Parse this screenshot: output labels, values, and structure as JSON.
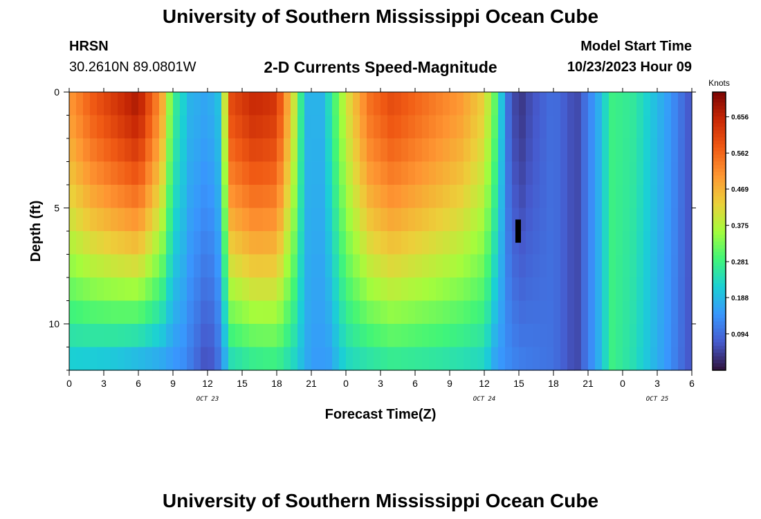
{
  "header": {
    "title": "University of Southern Mississippi Ocean Cube",
    "station": "HRSN",
    "coords": "30.2610N  89.0801W",
    "subtitle": "2-D Currents Speed-Magnitude",
    "model_label": "Model Start Time",
    "model_time": "10/23/2023 Hour 09"
  },
  "footer": {
    "title": "University of Southern Mississippi Ocean Cube"
  },
  "chart_data": {
    "type": "heatmap",
    "title": "2-D Currents Speed-Magnitude",
    "xlabel": "Forecast Time(Z)",
    "ylabel": "Depth (ft)",
    "x_hours_range": [
      0,
      54
    ],
    "y_range": [
      0,
      12
    ],
    "y_ticks": [
      0,
      5,
      10
    ],
    "x_ticks": [
      {
        "h": 0,
        "label": "0"
      },
      {
        "h": 3,
        "label": "3"
      },
      {
        "h": 6,
        "label": "6"
      },
      {
        "h": 9,
        "label": "9"
      },
      {
        "h": 12,
        "label": "12"
      },
      {
        "h": 15,
        "label": "15"
      },
      {
        "h": 18,
        "label": "18"
      },
      {
        "h": 21,
        "label": "21"
      },
      {
        "h": 24,
        "label": "0"
      },
      {
        "h": 27,
        "label": "3"
      },
      {
        "h": 30,
        "label": "6"
      },
      {
        "h": 33,
        "label": "9"
      },
      {
        "h": 36,
        "label": "12"
      },
      {
        "h": 39,
        "label": "15"
      },
      {
        "h": 42,
        "label": "18"
      },
      {
        "h": 45,
        "label": "21"
      },
      {
        "h": 48,
        "label": "0"
      },
      {
        "h": 51,
        "label": "3"
      },
      {
        "h": 54,
        "label": "6"
      }
    ],
    "date_labels": [
      {
        "h": 12,
        "label": "OCT 23"
      },
      {
        "h": 36,
        "label": "OCT 24"
      },
      {
        "h": 51,
        "label": "OCT 25"
      }
    ],
    "colorbar": {
      "unit": "Knots",
      "min": 0,
      "max": 0.72,
      "ticks": [
        0.656,
        0.562,
        0.469,
        0.375,
        0.281,
        0.188,
        0.094
      ]
    },
    "speed_by_hour_at_surface": [
      {
        "h": 0,
        "v": 0.5
      },
      {
        "h": 2,
        "v": 0.58
      },
      {
        "h": 4,
        "v": 0.63
      },
      {
        "h": 6,
        "v": 0.68
      },
      {
        "h": 8,
        "v": 0.5
      },
      {
        "h": 9,
        "v": 0.28
      },
      {
        "h": 10.5,
        "v": 0.18
      },
      {
        "h": 12,
        "v": 0.16
      },
      {
        "h": 13,
        "v": 0.2
      },
      {
        "h": 14,
        "v": 0.6
      },
      {
        "h": 16,
        "v": 0.65
      },
      {
        "h": 18,
        "v": 0.63
      },
      {
        "h": 19.5,
        "v": 0.4
      },
      {
        "h": 20.5,
        "v": 0.18
      },
      {
        "h": 22,
        "v": 0.18
      },
      {
        "h": 24,
        "v": 0.4
      },
      {
        "h": 26,
        "v": 0.55
      },
      {
        "h": 28,
        "v": 0.6
      },
      {
        "h": 31,
        "v": 0.55
      },
      {
        "h": 34,
        "v": 0.5
      },
      {
        "h": 36,
        "v": 0.43
      },
      {
        "h": 37,
        "v": 0.3
      },
      {
        "h": 38,
        "v": 0.1
      },
      {
        "h": 39,
        "v": 0.03
      },
      {
        "h": 40,
        "v": 0.06
      },
      {
        "h": 42,
        "v": 0.1
      },
      {
        "h": 44,
        "v": 0.05
      },
      {
        "h": 46,
        "v": 0.18
      },
      {
        "h": 47,
        "v": 0.28
      },
      {
        "h": 49,
        "v": 0.26
      },
      {
        "h": 52,
        "v": 0.15
      },
      {
        "h": 54,
        "v": 0.06
      }
    ],
    "speed_by_hour_at_bottom": [
      {
        "h": 0,
        "v": 0.2
      },
      {
        "h": 2,
        "v": 0.19
      },
      {
        "h": 4,
        "v": 0.18
      },
      {
        "h": 6,
        "v": 0.16
      },
      {
        "h": 8,
        "v": 0.15
      },
      {
        "h": 10,
        "v": 0.13
      },
      {
        "h": 12,
        "v": 0.05
      },
      {
        "h": 13,
        "v": 0.1
      },
      {
        "h": 14,
        "v": 0.22
      },
      {
        "h": 16,
        "v": 0.25
      },
      {
        "h": 18,
        "v": 0.26
      },
      {
        "h": 19.5,
        "v": 0.22
      },
      {
        "h": 21,
        "v": 0.15
      },
      {
        "h": 22.5,
        "v": 0.15
      },
      {
        "h": 24,
        "v": 0.22
      },
      {
        "h": 28,
        "v": 0.25
      },
      {
        "h": 32,
        "v": 0.24
      },
      {
        "h": 36,
        "v": 0.22
      },
      {
        "h": 37,
        "v": 0.15
      },
      {
        "h": 39,
        "v": 0.12
      },
      {
        "h": 42,
        "v": 0.1
      },
      {
        "h": 44,
        "v": 0.05
      },
      {
        "h": 46,
        "v": 0.18
      },
      {
        "h": 47,
        "v": 0.28
      },
      {
        "h": 49,
        "v": 0.24
      },
      {
        "h": 52,
        "v": 0.14
      },
      {
        "h": 54,
        "v": 0.06
      }
    ],
    "missing_data_marker": {
      "h": 39,
      "depth_range": [
        5.5,
        6.5
      ]
    }
  }
}
